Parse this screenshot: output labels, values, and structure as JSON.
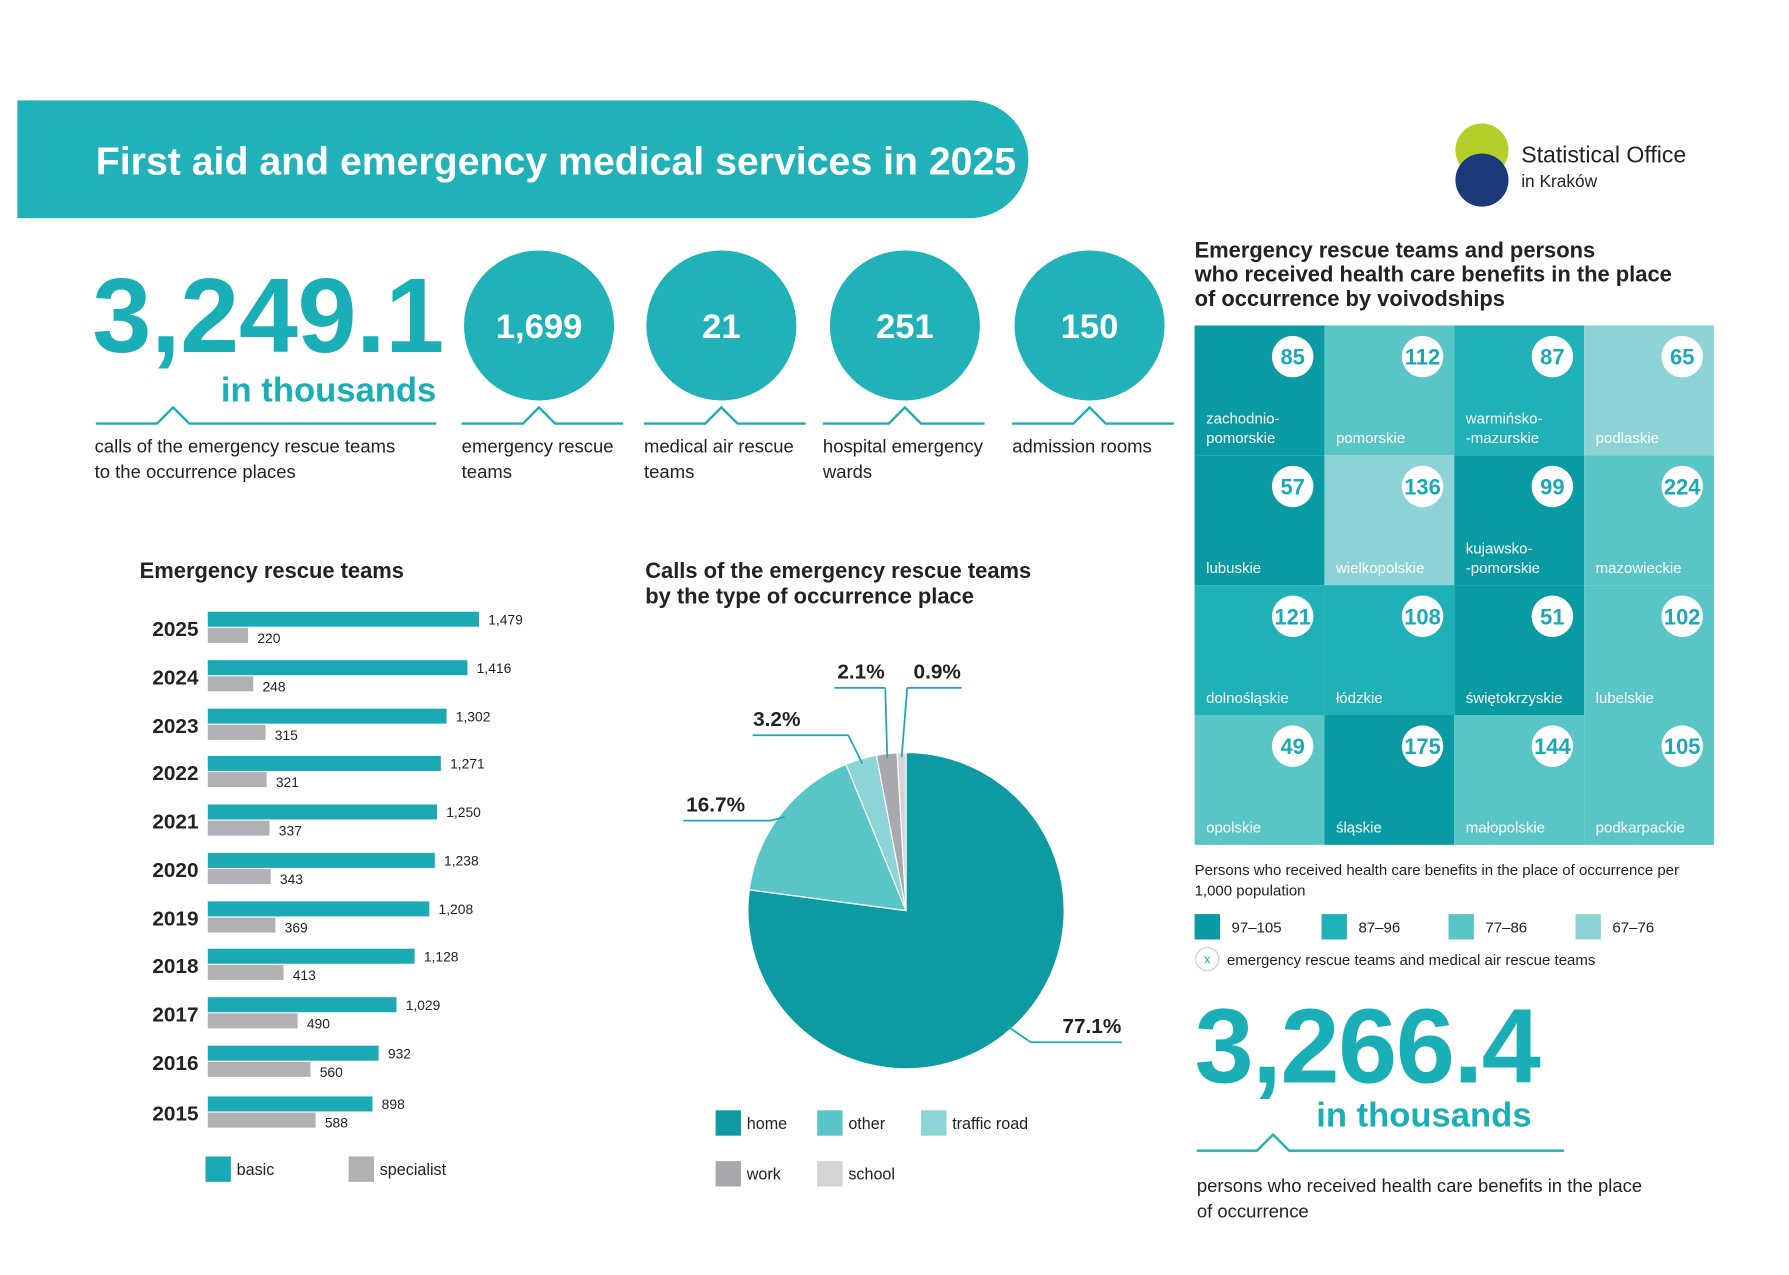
{
  "header": {
    "title": "First aid and emergency medical services in 2025"
  },
  "logo": {
    "line1": "Statistical Office",
    "line2": "in Kraków"
  },
  "headline": {
    "value": "3,249.1",
    "unit": "in thousands",
    "label": [
      "calls of the emergency rescue teams",
      "to the occurrence places"
    ]
  },
  "key_figures": [
    {
      "value": "1,699",
      "label": [
        "emergency rescue",
        "teams"
      ]
    },
    {
      "value": "21",
      "label": [
        "medical air rescue",
        "teams"
      ]
    },
    {
      "value": "251",
      "label": [
        "hospital emergency",
        "wards"
      ]
    },
    {
      "value": "150",
      "label": [
        "admission rooms"
      ]
    }
  ],
  "chart_data": [
    {
      "type": "bar",
      "orientation": "horizontal",
      "title": "Emergency rescue teams",
      "categories": [
        "2025",
        "2024",
        "2023",
        "2022",
        "2021",
        "2020",
        "2019",
        "2018",
        "2017",
        "2016",
        "2015"
      ],
      "series": [
        {
          "name": "basic",
          "color": "#1aa9b5",
          "values": [
            1479,
            1416,
            1302,
            1271,
            1250,
            1238,
            1208,
            1128,
            1029,
            932,
            898
          ],
          "value_labels": [
            "1,479",
            "1,416",
            "1,302",
            "1,271",
            "1,250",
            "1,238",
            "1,208",
            "1,128",
            "1,029",
            "932",
            "898"
          ]
        },
        {
          "name": "specialist",
          "color": "#b0b0b5",
          "values": [
            220,
            248,
            315,
            321,
            337,
            343,
            369,
            413,
            490,
            560,
            588
          ],
          "value_labels": [
            "220",
            "248",
            "315",
            "321",
            "337",
            "343",
            "369",
            "413",
            "490",
            "560",
            "588"
          ]
        }
      ]
    },
    {
      "type": "pie",
      "title": [
        "Calls of the emergency rescue teams",
        "by the type of occurrence place"
      ],
      "categories": [
        "home",
        "other",
        "traffic road",
        "work",
        "school"
      ],
      "values": [
        77.1,
        16.7,
        3.2,
        2.1,
        0.9
      ],
      "value_labels": [
        "77.1%",
        "16.7%",
        "3.2%",
        "2.1%",
        "0.9%"
      ],
      "colors": [
        "#0e9aa3",
        "#5ac5c6",
        "#8cd4d6",
        "#a8a8ad",
        "#d4d4d6"
      ]
    }
  ],
  "voivodships": {
    "title": [
      "Emergency rescue teams and persons",
      "who received health care benefits in the place",
      "of occurrence by voivodships"
    ],
    "tiles": [
      {
        "name": [
          "zachodnio-",
          "pomorskie"
        ],
        "value": 85,
        "color": "#0a9aa3"
      },
      {
        "name": [
          "pomorskie"
        ],
        "value": 112,
        "color": "#5ac5c7"
      },
      {
        "name": [
          "warmińsko-",
          "-mazurskie"
        ],
        "value": 87,
        "color": "#20b0b8"
      },
      {
        "name": [
          "podlaskie"
        ],
        "value": 65,
        "color": "#8dd3d6"
      },
      {
        "name": [
          "lubuskie"
        ],
        "value": 57,
        "color": "#0a9aa3"
      },
      {
        "name": [
          "wielkopolskie"
        ],
        "value": 136,
        "color": "#8dd3d6"
      },
      {
        "name": [
          "kujawsko-",
          "-pomorskie"
        ],
        "value": 99,
        "color": "#0a9aa3"
      },
      {
        "name": [
          "mazowieckie"
        ],
        "value": 224,
        "color": "#5ac5c7"
      },
      {
        "name": [
          "dolnośląskie"
        ],
        "value": 121,
        "color": "#20b0b8"
      },
      {
        "name": [
          "łódzkie"
        ],
        "value": 108,
        "color": "#20b0b8"
      },
      {
        "name": [
          "świętokrzyskie"
        ],
        "value": 51,
        "color": "#0a9aa3"
      },
      {
        "name": [
          "lubelskie"
        ],
        "value": 102,
        "color": "#5ac5c7"
      },
      {
        "name": [
          "opolskie"
        ],
        "value": 49,
        "color": "#5ac5c7"
      },
      {
        "name": [
          "śląskie"
        ],
        "value": 175,
        "color": "#0a9aa3"
      },
      {
        "name": [
          "małopolskie"
        ],
        "value": 144,
        "color": "#5ac5c7"
      },
      {
        "name": [
          "podkarpackie"
        ],
        "value": 105,
        "color": "#5ac5c7"
      }
    ],
    "note": [
      "Persons who received health care benefits in the place of occurrence per",
      "1,000 population"
    ],
    "legend": [
      {
        "label": "97–105",
        "color": "#0a9aa3"
      },
      {
        "label": "87–96",
        "color": "#20b0b8"
      },
      {
        "label": "77–86",
        "color": "#5ac5c7"
      },
      {
        "label": "67–76",
        "color": "#8dd3d6"
      }
    ],
    "marker": {
      "symbol": "x",
      "label": "emergency rescue teams and medical air rescue teams"
    }
  },
  "persons": {
    "value": "3,266.4",
    "unit": "in thousands",
    "label": [
      "persons who received health care benefits in the place",
      "of occurrence"
    ]
  }
}
